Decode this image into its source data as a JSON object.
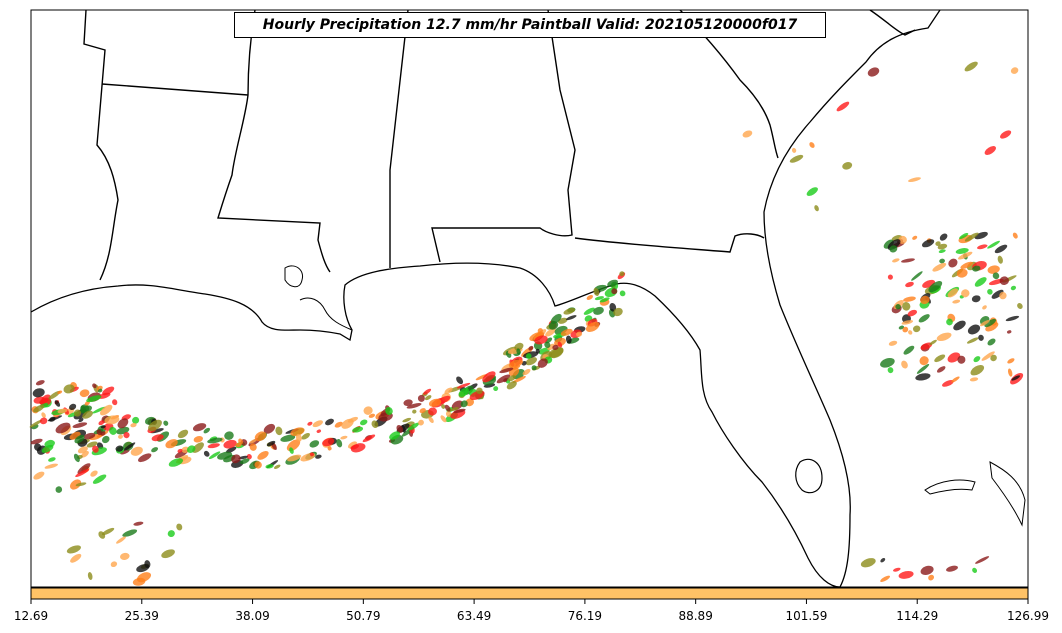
{
  "title": "Hourly Precipitation 12.7 mm/hr Paintball Valid: 202105120000f017",
  "colorbar": {
    "fill_color": "#ffc266",
    "ticks": [
      "12.69",
      "25.39",
      "38.09",
      "50.79",
      "63.49",
      "76.19",
      "88.89",
      "101.59",
      "114.29",
      "126.99"
    ]
  },
  "paintball_colors": {
    "red": "#ff1a1a",
    "dark_red": "#8b1a1a",
    "orange": "#ff7f1a",
    "light_orange": "#ffa64d",
    "green": "#1acc1a",
    "dark_green": "#1a7a1a",
    "olive": "#8c8c1a",
    "black": "#111111"
  }
}
